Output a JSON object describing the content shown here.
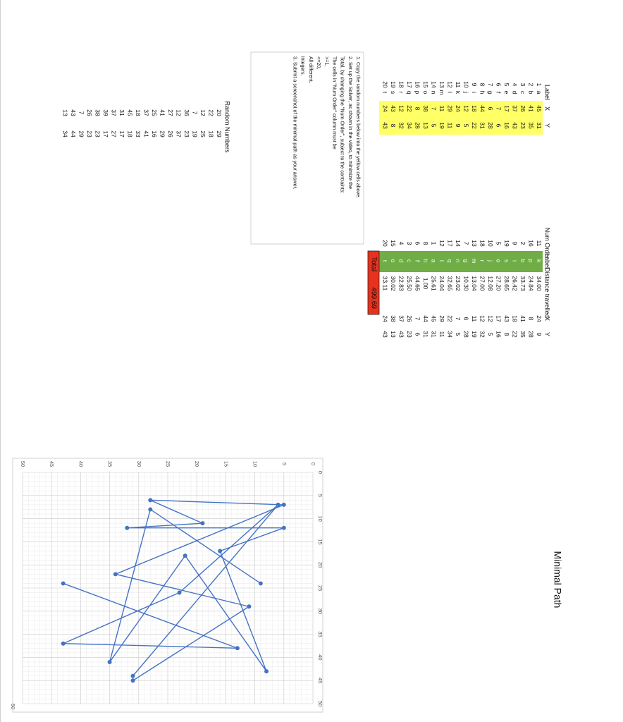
{
  "table1": {
    "headers": {
      "label": "Label",
      "x": "X",
      "y": "Y"
    },
    "rows": [
      {
        "n": "1",
        "label": "a",
        "x": "45",
        "y": "31"
      },
      {
        "n": "2",
        "label": "b",
        "x": "41",
        "y": "35"
      },
      {
        "n": "3",
        "label": "c",
        "x": "26",
        "y": "23"
      },
      {
        "n": "4",
        "label": "d",
        "x": "37",
        "y": "43"
      },
      {
        "n": "5",
        "label": "e",
        "x": "17",
        "y": "16"
      },
      {
        "n": "6",
        "label": "f",
        "x": "7",
        "y": "6"
      },
      {
        "n": "7",
        "label": "g",
        "x": "6",
        "y": "28"
      },
      {
        "n": "8",
        "label": "h",
        "x": "44",
        "y": "31"
      },
      {
        "n": "9",
        "label": "i",
        "x": "18",
        "y": "22"
      },
      {
        "n": "10",
        "label": "j",
        "x": "12",
        "y": "5"
      },
      {
        "n": "11",
        "label": "k",
        "x": "24",
        "y": "9"
      },
      {
        "n": "12",
        "label": "l",
        "x": "29",
        "y": "11"
      },
      {
        "n": "13",
        "label": "m",
        "x": "11",
        "y": "19"
      },
      {
        "n": "14",
        "label": "n",
        "x": "7",
        "y": "5"
      },
      {
        "n": "15",
        "label": "o",
        "x": "38",
        "y": "13"
      },
      {
        "n": "16",
        "label": "p",
        "x": "8",
        "y": "28"
      },
      {
        "n": "17",
        "label": "q",
        "x": "22",
        "y": "34"
      },
      {
        "n": "18",
        "label": "r",
        "x": "12",
        "y": "32"
      },
      {
        "n": "19",
        "label": "s",
        "x": "43",
        "y": "8"
      },
      {
        "n": "20",
        "label": "t",
        "x": "24",
        "y": "43"
      }
    ]
  },
  "table2": {
    "headers": {
      "order": "Num Order",
      "label": "Label",
      "dist": "Distance travelled",
      "x": "X",
      "y": "Y"
    },
    "rows": [
      {
        "order": "11",
        "label": "k",
        "dist": "34.00",
        "x": "24",
        "y": "9"
      },
      {
        "order": "16",
        "label": "p",
        "dist": "24.84",
        "x": "8",
        "y": "28"
      },
      {
        "order": "2",
        "label": "b",
        "dist": "33.73",
        "x": "41",
        "y": "35"
      },
      {
        "order": "9",
        "label": "i",
        "dist": "26.42",
        "x": "18",
        "y": "22"
      },
      {
        "order": "19",
        "label": "s",
        "dist": "28.65",
        "x": "43",
        "y": "8"
      },
      {
        "order": "5",
        "label": "e",
        "dist": "27.20",
        "x": "17",
        "y": "16"
      },
      {
        "order": "10",
        "label": "j",
        "dist": "12.08",
        "x": "12",
        "y": "5"
      },
      {
        "order": "18",
        "label": "r",
        "dist": "27.00",
        "x": "12",
        "y": "32"
      },
      {
        "order": "13",
        "label": "m",
        "dist": "13.04",
        "x": "11",
        "y": "19"
      },
      {
        "order": "7",
        "label": "g",
        "dist": "10.30",
        "x": "6",
        "y": "28"
      },
      {
        "order": "14",
        "label": "n",
        "dist": "23.02",
        "x": "7",
        "y": "5"
      },
      {
        "order": "17",
        "label": "q",
        "dist": "32.65",
        "x": "22",
        "y": "34"
      },
      {
        "order": "12",
        "label": "l",
        "dist": "24.04",
        "x": "29",
        "y": "11"
      },
      {
        "order": "1",
        "label": "a",
        "dist": "25.61",
        "x": "45",
        "y": "31"
      },
      {
        "order": "8",
        "label": "h",
        "dist": "1.00",
        "x": "44",
        "y": "31"
      },
      {
        "order": "6",
        "label": "f",
        "dist": "44.65",
        "x": "7",
        "y": "6"
      },
      {
        "order": "3",
        "label": "c",
        "dist": "25.50",
        "x": "26",
        "y": "23"
      },
      {
        "order": "4",
        "label": "d",
        "dist": "22.83",
        "x": "37",
        "y": "43"
      },
      {
        "order": "15",
        "label": "o",
        "dist": "30.02",
        "x": "38",
        "y": "13"
      },
      {
        "order": "20",
        "label": "t",
        "dist": "33.11",
        "x": "24",
        "y": "43"
      }
    ],
    "total_label": "Total",
    "total_value": "499.69"
  },
  "instructions": {
    "lines": [
      "1. Copy the random numbers below into the yellow cells above.",
      "2. Set up the Solver, as shown in the video, to minimize the",
      "Total, by changing the \"Num Order\", subject to the contraints:",
      "The cells in \"Num Order\" column must be",
      ">=1,",
      "<=20,",
      "All different,",
      "integers.",
      "3. Submit a screenshot of the minimal path as your answer."
    ]
  },
  "random_numbers": {
    "title": "Random Numbers",
    "pairs": [
      [
        "20",
        "29"
      ],
      [
        "22",
        "18"
      ],
      [
        "12",
        "25"
      ],
      [
        "7",
        "19"
      ],
      [
        "36",
        "23"
      ],
      [
        "12",
        "37"
      ],
      [
        "27",
        "26"
      ],
      [
        "41",
        "29"
      ],
      [
        "25",
        "16"
      ],
      [
        "37",
        "41"
      ],
      [
        "18",
        "33"
      ],
      [
        "45",
        "18"
      ],
      [
        "31",
        "17"
      ],
      [
        "37",
        "27"
      ],
      [
        "39",
        "17"
      ],
      [
        "38",
        "23"
      ],
      [
        "26",
        "23"
      ],
      [
        "7",
        "29"
      ],
      [
        "43",
        "44"
      ],
      [
        "13",
        "34"
      ]
    ]
  },
  "colors": {
    "yellow": "#ffff66",
    "green": "#70ad47",
    "red": "#e8321e",
    "series": "#4472c4",
    "grid": "#d9d9d9"
  },
  "chart_data": {
    "type": "line",
    "title": "Minimal Path",
    "xlabel": "",
    "ylabel": "",
    "xlim": [
      0,
      50
    ],
    "ylim": [
      0,
      50
    ],
    "xticks": [
      "0",
      "5",
      "10",
      "15",
      "20",
      "25",
      "30",
      "35",
      "40",
      "45",
      "50"
    ],
    "yticks": [
      "0",
      "5",
      "10",
      "15",
      "20",
      "25",
      "30",
      "35",
      "40",
      "45",
      "50"
    ],
    "grid": true,
    "series": [
      {
        "x": [
          24,
          8,
          41,
          18,
          43,
          17,
          12,
          12,
          11,
          6,
          7,
          22,
          29,
          45,
          44,
          7,
          26,
          37,
          38,
          24
        ],
        "y": [
          9,
          28,
          35,
          22,
          8,
          16,
          5,
          32,
          19,
          28,
          5,
          34,
          11,
          31,
          31,
          6,
          23,
          43,
          13,
          43
        ]
      }
    ]
  }
}
